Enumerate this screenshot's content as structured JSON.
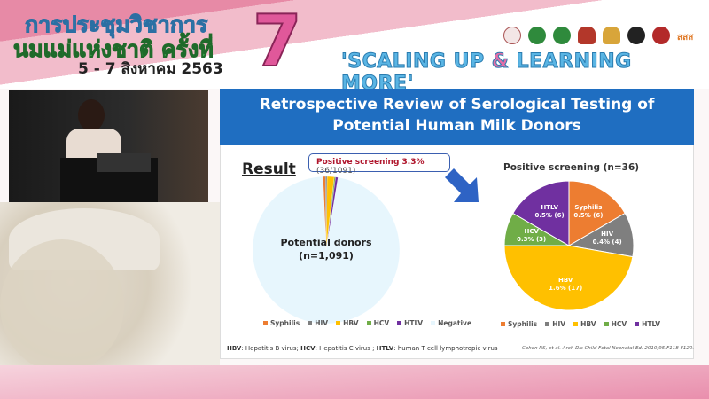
{
  "banner": {
    "conference_line1": "การประชุมวิชาการ",
    "conference_line2": "นมแม่แห่งชาติ ครั้งที่",
    "conference_number": "7",
    "date": "5 - 7 สิงหาคม 2563",
    "slogan_part1": "'SCALING UP ",
    "slogan_amp": "&",
    "slogan_part2": " LEARNING MORE'",
    "logo_text": "สสส"
  },
  "slide": {
    "title_line1": "Retrospective Review of Serological Testing of",
    "title_line2": "Potential Human Milk Donors",
    "result_heading": "Result",
    "callout_bold": "Positive screening 3.3%",
    "callout_rest": " (36/1091)",
    "footnote": [
      {
        "abbr": "HBV",
        "text": ": Hepatitis B virus; "
      },
      {
        "abbr": "HCV",
        "text": ": Hepatitis C virus ; "
      },
      {
        "abbr": "HTLV",
        "text": ": human T cell lymphotropic virus"
      }
    ],
    "citation": "Cohen RS, et al. Arch Dis Child Fetal Neonatal Ed. 2010;95:F118-F120."
  },
  "chart_data": [
    {
      "type": "pie",
      "center_label_line1": "Potential donors",
      "center_label_line2": "(n=1,091)",
      "categories": [
        "Syphilis",
        "HIV",
        "HBV",
        "HCV",
        "HTLV",
        "Negative"
      ],
      "values": [
        6,
        4,
        17,
        3,
        6,
        1055
      ],
      "colors": [
        "#ed7d31",
        "#7f7f7f",
        "#ffc000",
        "#70ad47",
        "#7030a0",
        "#e7f6fd"
      ]
    },
    {
      "type": "pie",
      "title": "Positive screening (n=36)",
      "categories": [
        "Syphilis",
        "HIV",
        "HBV",
        "HCV",
        "HTLV"
      ],
      "values": [
        6,
        4,
        17,
        3,
        6
      ],
      "data_labels": [
        "0.5% (6)",
        "0.4% (4)",
        "1.6% (17)",
        "0.3% (3)",
        "0.5% (6)"
      ],
      "colors": [
        "#ed7d31",
        "#7f7f7f",
        "#ffc000",
        "#70ad47",
        "#7030a0"
      ]
    }
  ]
}
